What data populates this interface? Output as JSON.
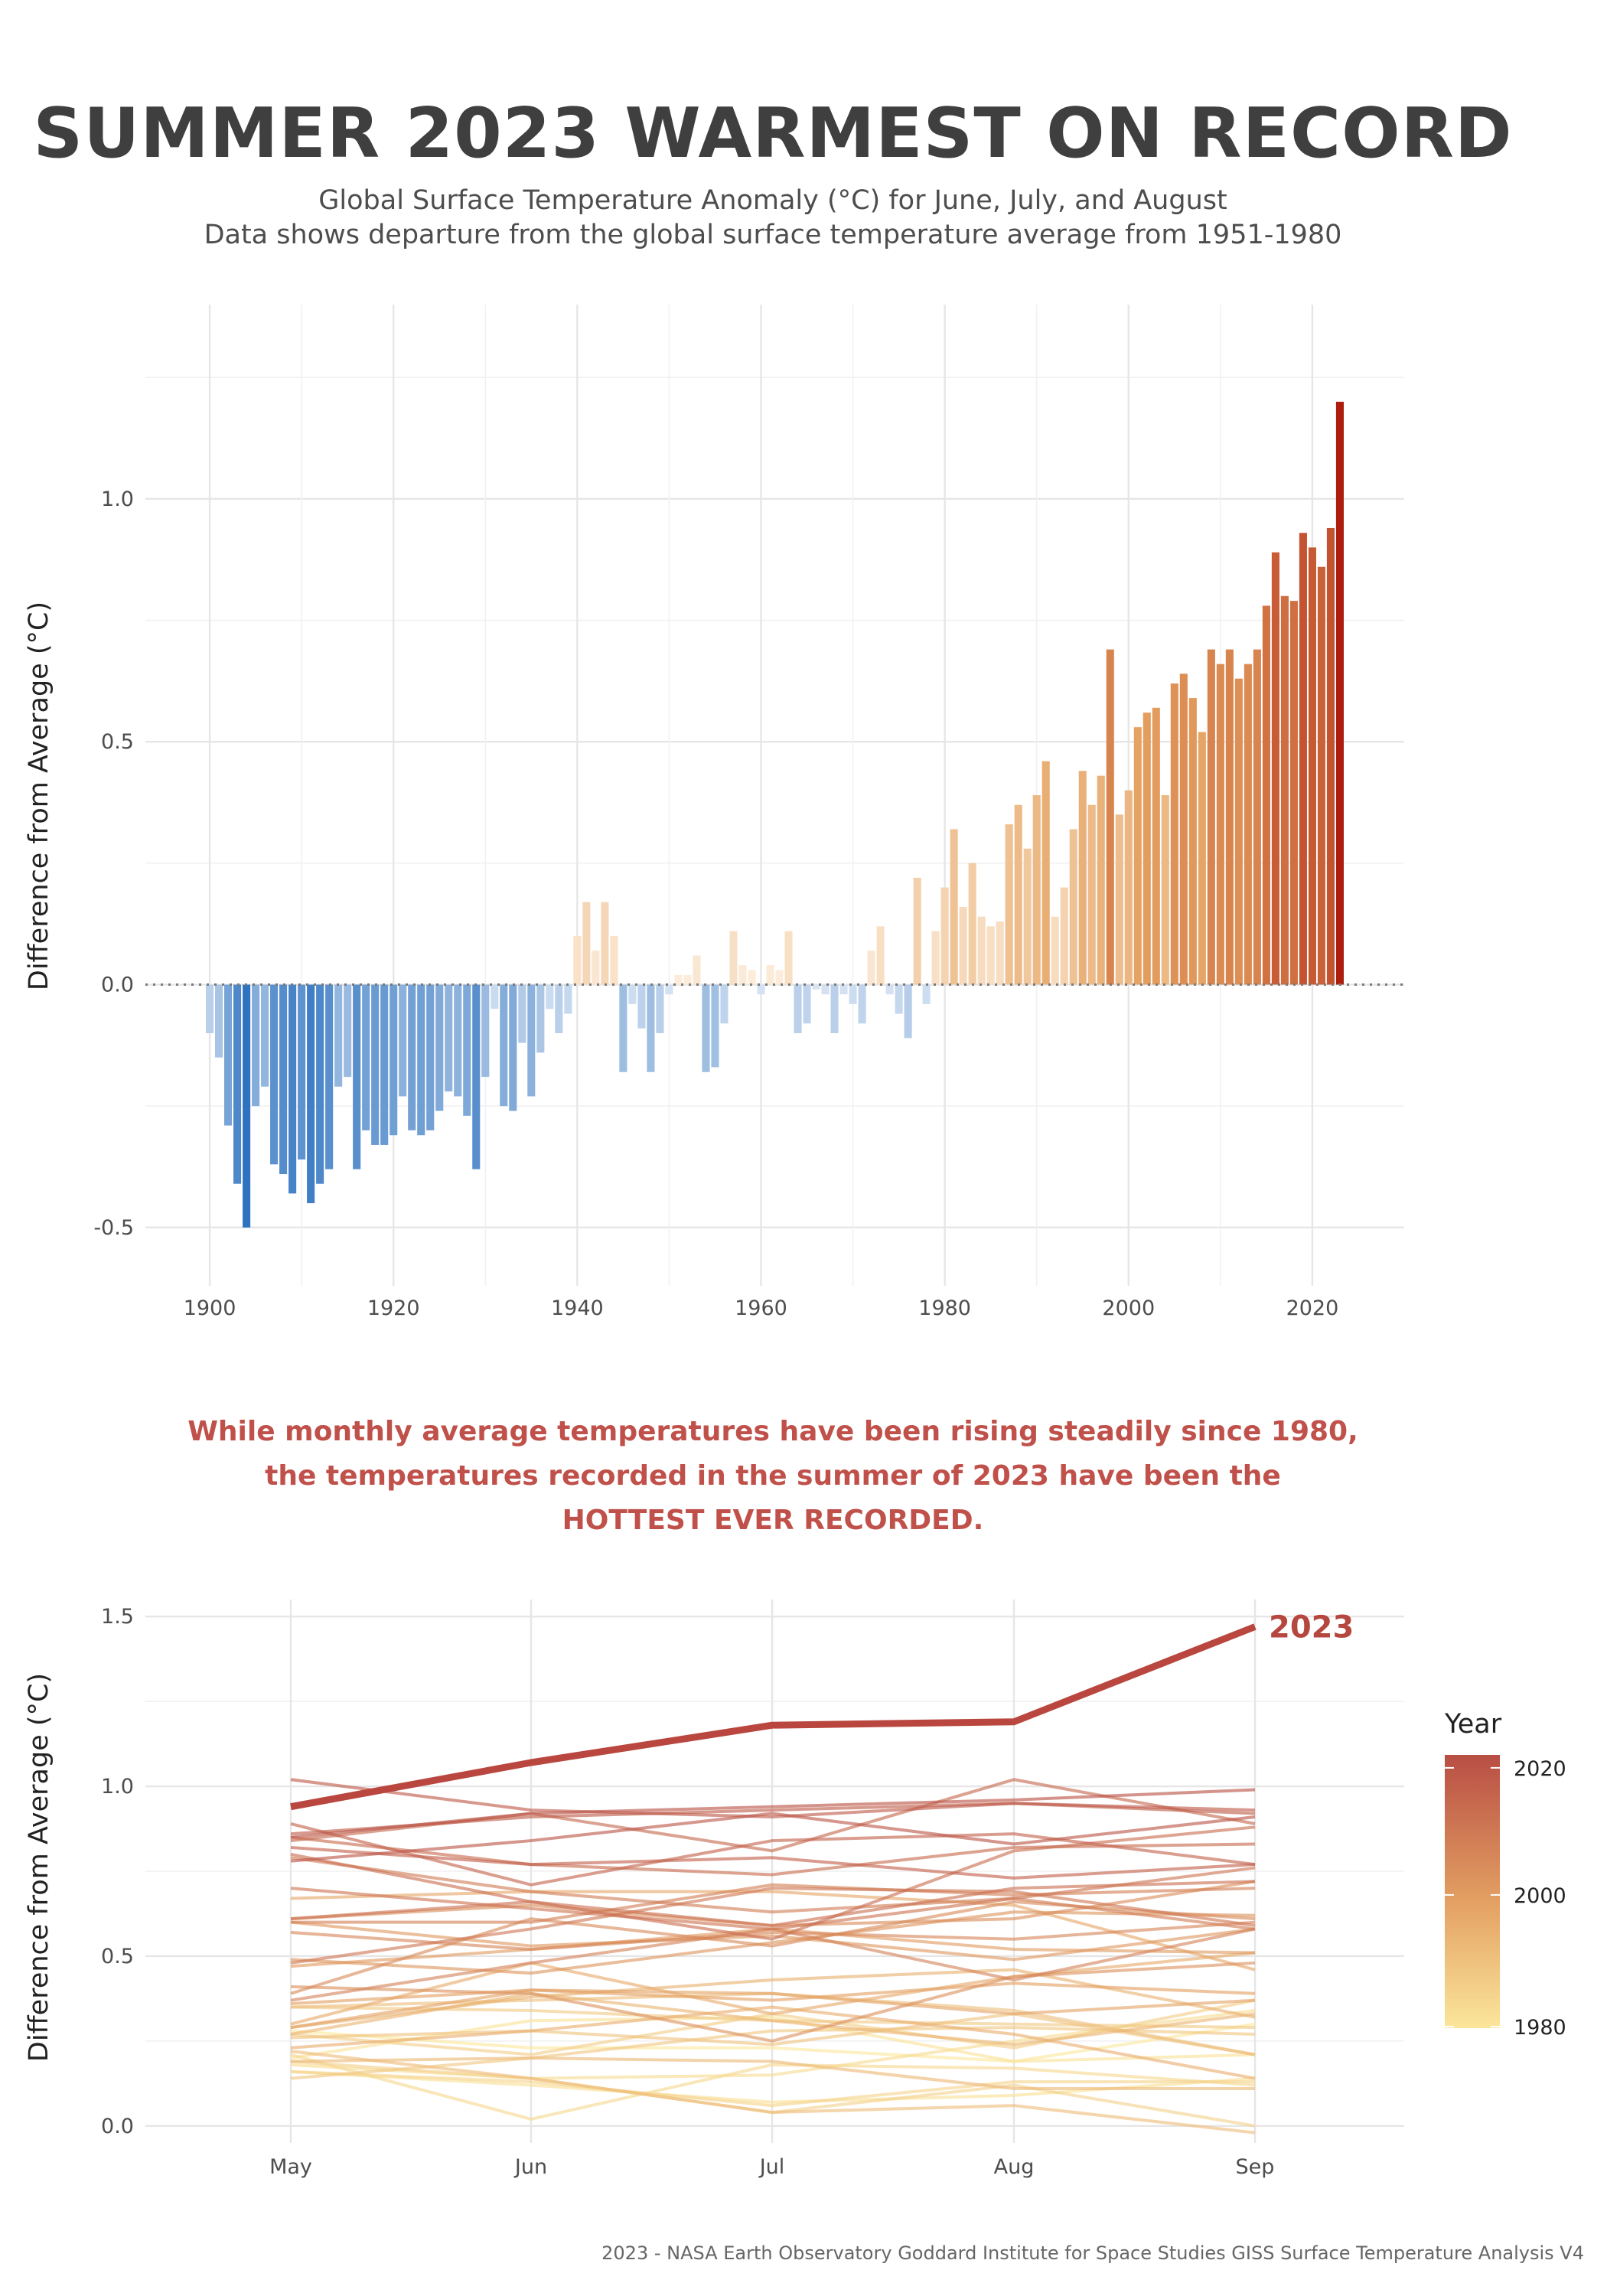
{
  "title": "SUMMER 2023 WARMEST ON RECORD",
  "subtitle_line1": "Global Surface Temperature Anomaly (°C) for June, July, and August",
  "subtitle_line2": "Data shows departure from the global surface temperature average from 1951-1980",
  "callout_line1": "While monthly average temperatures have been rising steadily since 1980,",
  "callout_line2": "the temperatures recorded in the summer of 2023 have been the",
  "callout_line3": "HOTTEST EVER RECORDED.",
  "caption": "2023 - NASA Earth Observatory Goddard Institute for Space Studies GISS Surface Temperature Analysis V4",
  "colors": {
    "cold": "#2f73c0",
    "warm": "#ad1e0f",
    "line2023": "#b9473f",
    "legend_top": "#b84e44",
    "legend_mid": "#e39f62",
    "legend_bottom": "#fbe69b"
  },
  "chart_data": [
    {
      "type": "bar",
      "title": "",
      "xlabel": "",
      "ylabel": "Difference from Average (°C)",
      "xlim": [
        1893,
        2030
      ],
      "ylim": [
        -0.62,
        1.4
      ],
      "x_ticks": [
        "1900",
        "1920",
        "1940",
        "1960",
        "1980",
        "2000",
        "2020"
      ],
      "y_ticks": [
        "-0.5",
        "0.0",
        "0.5",
        "1.0"
      ],
      "reference_line": 0.0,
      "grid": true,
      "years": [
        1900,
        1901,
        1902,
        1903,
        1904,
        1905,
        1906,
        1907,
        1908,
        1909,
        1910,
        1911,
        1912,
        1913,
        1914,
        1915,
        1916,
        1917,
        1918,
        1919,
        1920,
        1921,
        1922,
        1923,
        1924,
        1925,
        1926,
        1927,
        1928,
        1929,
        1930,
        1931,
        1932,
        1933,
        1934,
        1935,
        1936,
        1937,
        1938,
        1939,
        1940,
        1941,
        1942,
        1943,
        1944,
        1945,
        1946,
        1947,
        1948,
        1949,
        1950,
        1951,
        1952,
        1953,
        1954,
        1955,
        1956,
        1957,
        1958,
        1959,
        1960,
        1961,
        1962,
        1963,
        1964,
        1965,
        1966,
        1967,
        1968,
        1969,
        1970,
        1971,
        1972,
        1973,
        1974,
        1975,
        1976,
        1977,
        1978,
        1979,
        1980,
        1981,
        1982,
        1983,
        1984,
        1985,
        1986,
        1987,
        1988,
        1989,
        1990,
        1991,
        1992,
        1993,
        1994,
        1995,
        1996,
        1997,
        1998,
        1999,
        2000,
        2001,
        2002,
        2003,
        2004,
        2005,
        2006,
        2007,
        2008,
        2009,
        2010,
        2011,
        2012,
        2013,
        2014,
        2015,
        2016,
        2017,
        2018,
        2019,
        2020,
        2021,
        2022,
        2023
      ],
      "values": [
        -0.1,
        -0.15,
        -0.29,
        -0.41,
        -0.5,
        -0.25,
        -0.21,
        -0.37,
        -0.39,
        -0.43,
        -0.36,
        -0.45,
        -0.41,
        -0.38,
        -0.21,
        -0.19,
        -0.38,
        -0.3,
        -0.33,
        -0.33,
        -0.31,
        -0.23,
        -0.3,
        -0.31,
        -0.3,
        -0.26,
        -0.22,
        -0.23,
        -0.27,
        -0.38,
        -0.19,
        -0.05,
        -0.25,
        -0.26,
        -0.12,
        -0.23,
        -0.14,
        -0.05,
        -0.1,
        -0.06,
        0.1,
        0.17,
        0.07,
        0.17,
        0.1,
        -0.18,
        -0.04,
        -0.09,
        -0.18,
        -0.1,
        -0.02,
        0.02,
        0.02,
        0.06,
        -0.18,
        -0.17,
        -0.08,
        0.11,
        0.04,
        0.03,
        -0.02,
        0.04,
        0.03,
        0.11,
        -0.1,
        -0.08,
        -0.01,
        -0.02,
        -0.1,
        -0.02,
        -0.04,
        -0.08,
        0.07,
        0.12,
        -0.02,
        -0.06,
        -0.11,
        0.22,
        -0.04,
        0.11,
        0.2,
        0.32,
        0.16,
        0.25,
        0.14,
        0.12,
        0.13,
        0.33,
        0.37,
        0.28,
        0.39,
        0.46,
        0.14,
        0.2,
        0.32,
        0.44,
        0.37,
        0.43,
        0.69,
        0.35,
        0.4,
        0.53,
        0.56,
        0.57,
        0.39,
        0.62,
        0.64,
        0.59,
        0.52,
        0.69,
        0.66,
        0.69,
        0.63,
        0.66,
        0.69,
        0.78,
        0.89,
        0.8,
        0.79,
        0.93,
        0.9,
        0.86,
        0.94,
        1.2
      ]
    },
    {
      "type": "line",
      "title": "",
      "xlabel": "",
      "ylabel": "Difference from Average (°C)",
      "categories": [
        "May",
        "Jun",
        "Jul",
        "Aug",
        "Sep"
      ],
      "ylim": [
        -0.05,
        1.55
      ],
      "y_ticks": [
        "0.0",
        "0.5",
        "1.0",
        "1.5"
      ],
      "legend_title": "Year",
      "legend_ticks": [
        "2020",
        "2000",
        "1980"
      ],
      "legend_position": "right",
      "highlight": {
        "name": "2023",
        "values": [
          0.94,
          1.07,
          1.18,
          1.19,
          1.47
        ]
      },
      "background_series": [
        {
          "year": 1980,
          "values": [
            0.28,
            0.23,
            0.23,
            0.19,
            0.3
          ]
        },
        {
          "year": 1981,
          "values": [
            0.2,
            0.31,
            0.32,
            0.19,
            0.21
          ]
        },
        {
          "year": 1982,
          "values": [
            0.16,
            0.12,
            0.07,
            0.09,
            0.14
          ]
        },
        {
          "year": 1983,
          "values": [
            0.18,
            0.14,
            0.15,
            0.25,
            0.34
          ]
        },
        {
          "year": 1984,
          "values": [
            0.21,
            0.02,
            0.18,
            0.17,
            0.12
          ]
        },
        {
          "year": 1985,
          "values": [
            0.16,
            0.13,
            0.06,
            0.13,
            0.13
          ]
        },
        {
          "year": 1986,
          "values": [
            0.19,
            0.14,
            0.04,
            0.12,
            0.0
          ]
        },
        {
          "year": 1987,
          "values": [
            0.27,
            0.21,
            0.33,
            0.23,
            0.37
          ]
        },
        {
          "year": 1988,
          "values": [
            0.35,
            0.34,
            0.31,
            0.3,
            0.29
          ]
        },
        {
          "year": 1989,
          "values": [
            0.14,
            0.2,
            0.28,
            0.29,
            0.27
          ]
        },
        {
          "year": 1990,
          "values": [
            0.26,
            0.28,
            0.24,
            0.33,
            0.21
          ]
        },
        {
          "year": 1991,
          "values": [
            0.35,
            0.37,
            0.39,
            0.34,
            0.21
          ]
        },
        {
          "year": 1992,
          "values": [
            0.22,
            0.14,
            0.04,
            0.06,
            -0.02
          ]
        },
        {
          "year": 1993,
          "values": [
            0.19,
            0.2,
            0.19,
            0.11,
            0.11
          ]
        },
        {
          "year": 1994,
          "values": [
            0.27,
            0.39,
            0.31,
            0.24,
            0.33
          ]
        },
        {
          "year": 1995,
          "values": [
            0.29,
            0.38,
            0.43,
            0.46,
            0.32
          ]
        },
        {
          "year": 1996,
          "values": [
            0.23,
            0.28,
            0.35,
            0.27,
            0.14
          ]
        },
        {
          "year": 1997,
          "values": [
            0.3,
            0.48,
            0.33,
            0.44,
            0.51
          ]
        },
        {
          "year": 1998,
          "values": [
            0.67,
            0.69,
            0.69,
            0.65,
            0.46
          ]
        },
        {
          "year": 1999,
          "values": [
            0.29,
            0.4,
            0.39,
            0.33,
            0.37
          ]
        },
        {
          "year": 2000,
          "values": [
            0.36,
            0.4,
            0.37,
            0.42,
            0.39
          ]
        },
        {
          "year": 2001,
          "values": [
            0.47,
            0.52,
            0.58,
            0.52,
            0.51
          ]
        },
        {
          "year": 2002,
          "values": [
            0.6,
            0.53,
            0.56,
            0.49,
            0.58
          ]
        },
        {
          "year": 2003,
          "values": [
            0.49,
            0.45,
            0.54,
            0.63,
            0.62
          ]
        },
        {
          "year": 2004,
          "values": [
            0.41,
            0.39,
            0.25,
            0.44,
            0.48
          ]
        },
        {
          "year": 2005,
          "values": [
            0.61,
            0.65,
            0.59,
            0.61,
            0.72
          ]
        },
        {
          "year": 2006,
          "values": [
            0.39,
            0.61,
            0.53,
            0.66,
            0.61
          ]
        },
        {
          "year": 2007,
          "values": [
            0.57,
            0.52,
            0.57,
            0.55,
            0.6
          ]
        },
        {
          "year": 2008,
          "values": [
            0.37,
            0.48,
            0.58,
            0.43,
            0.58
          ]
        },
        {
          "year": 2009,
          "values": [
            0.6,
            0.6,
            0.71,
            0.68,
            0.7
          ]
        },
        {
          "year": 2010,
          "values": [
            0.79,
            0.69,
            0.63,
            0.67,
            0.58
          ]
        },
        {
          "year": 2011,
          "values": [
            0.48,
            0.58,
            0.7,
            0.69,
            0.59
          ]
        },
        {
          "year": 2012,
          "values": [
            0.7,
            0.64,
            0.58,
            0.67,
            0.76
          ]
        },
        {
          "year": 2013,
          "values": [
            0.61,
            0.66,
            0.59,
            0.7,
            0.72
          ]
        },
        {
          "year": 2014,
          "values": [
            0.8,
            0.66,
            0.55,
            0.81,
            0.88
          ]
        },
        {
          "year": 2015,
          "values": [
            0.85,
            0.77,
            0.74,
            0.82,
            0.83
          ]
        },
        {
          "year": 2016,
          "values": [
            0.84,
            0.92,
            0.81,
            1.02,
            0.89
          ]
        },
        {
          "year": 2017,
          "values": [
            0.89,
            0.71,
            0.84,
            0.86,
            0.77
          ]
        },
        {
          "year": 2018,
          "values": [
            0.82,
            0.77,
            0.79,
            0.73,
            0.77
          ]
        },
        {
          "year": 2019,
          "values": [
            0.86,
            0.91,
            0.93,
            0.95,
            0.92
          ]
        },
        {
          "year": 2020,
          "values": [
            1.02,
            0.93,
            0.91,
            0.95,
            0.93
          ]
        },
        {
          "year": 2021,
          "values": [
            0.78,
            0.84,
            0.92,
            0.83,
            0.91
          ]
        },
        {
          "year": 2022,
          "values": [
            0.85,
            0.92,
            0.94,
            0.96,
            0.99
          ]
        }
      ]
    }
  ]
}
